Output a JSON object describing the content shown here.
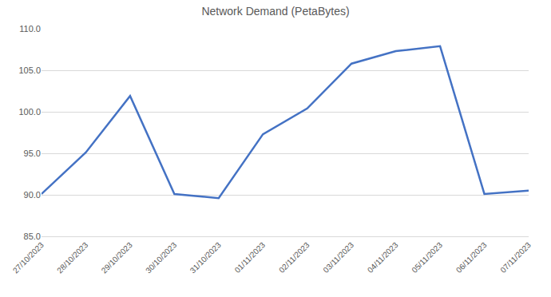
{
  "chart_data": {
    "type": "line",
    "title": "Network Demand (PetaBytes)",
    "categories": [
      "27/10/2023",
      "28/10/2023",
      "29/10/2023",
      "30/10/2023",
      "31/10/2023",
      "01/11/2023",
      "02/11/2023",
      "03/11/2023",
      "04/11/2023",
      "05/11/2023",
      "06/11/2023",
      "07/11/2023"
    ],
    "values": [
      90.1,
      95.1,
      101.9,
      90.1,
      89.6,
      97.3,
      100.4,
      105.8,
      107.3,
      107.9,
      90.1,
      90.5
    ],
    "color": "#4472c4",
    "ylim": [
      85,
      110
    ],
    "yticks": [
      {
        "value": 85,
        "label": "85.0"
      },
      {
        "value": 90,
        "label": "90.0"
      },
      {
        "value": 95,
        "label": "95.0"
      },
      {
        "value": 100,
        "label": "100.0"
      },
      {
        "value": 105,
        "label": "105.0"
      },
      {
        "value": 110,
        "label": "110.0"
      }
    ],
    "grid": true
  }
}
